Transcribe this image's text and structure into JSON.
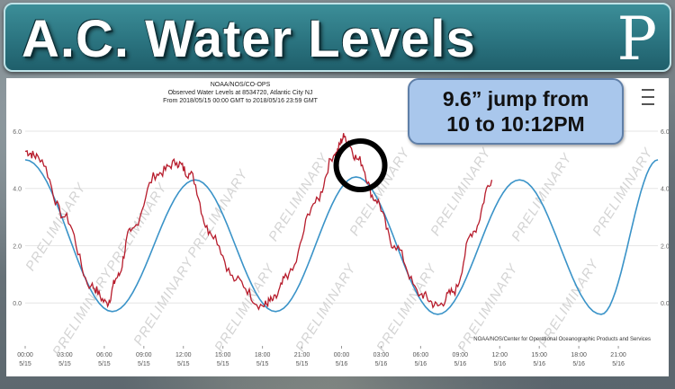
{
  "banner": {
    "title": "A.C. Water Levels",
    "logo_glyph": "P"
  },
  "callout": {
    "line1": "9.6” jump from",
    "line2": "10 to 10:12PM"
  },
  "footer_credit": "NOAA/NOS/Center for Operational Oceanographic Products and Services",
  "watermark_text": "PRELIMINARY",
  "chart_data": {
    "type": "line",
    "title": "NOAA/NOS/CO-OPS",
    "subtitle_lines": [
      "Observed Water Levels at 8534720, Atlantic City NJ",
      "From 2018/05/15 00:00 GMT to 2018/05/16 23:59 GMT"
    ],
    "x_unit": "hours since 2018/05/15 00:00 GMT",
    "xlim": [
      0,
      48
    ],
    "ylim": [
      -1.5,
      6.0
    ],
    "yticks": [
      0.0,
      2.0,
      4.0,
      6.0
    ],
    "ytick_labels": [
      "0.0",
      "2.0",
      "4.0",
      "6.0"
    ],
    "xtick_labels": [
      [
        "00:00",
        "5/15"
      ],
      [
        "03:00",
        "5/15"
      ],
      [
        "06:00",
        "5/15"
      ],
      [
        "09:00",
        "5/15"
      ],
      [
        "12:00",
        "5/15"
      ],
      [
        "15:00",
        "5/15"
      ],
      [
        "18:00",
        "5/15"
      ],
      [
        "21:00",
        "5/15"
      ],
      [
        "00:00",
        "5/16"
      ],
      [
        "03:00",
        "5/16"
      ],
      [
        "06:00",
        "5/16"
      ],
      [
        "09:00",
        "5/16"
      ],
      [
        "12:00",
        "5/16"
      ],
      [
        "15:00",
        "5/16"
      ],
      [
        "18:00",
        "5/16"
      ],
      [
        "21:00",
        "5/16"
      ]
    ],
    "grid": true,
    "series": [
      {
        "color": "#3a93c8",
        "style": "smooth",
        "x": [
          0,
          6.6,
          12.9,
          19.0,
          25.1,
          31.3,
          37.5,
          43.7,
          48
        ],
        "y": [
          5.0,
          -0.3,
          4.3,
          -0.3,
          4.4,
          -0.4,
          4.3,
          -0.4,
          5.0
        ]
      },
      {
        "color": "#b71c2c",
        "style": "noisy",
        "x": [
          0,
          1,
          3,
          5,
          6.2,
          7,
          8,
          10,
          11.5,
          12.5,
          14,
          16,
          18,
          18.8,
          20,
          22,
          23.5,
          24.2,
          25.3,
          26.6,
          28,
          30,
          31.3,
          32.5,
          34,
          35.4
        ],
        "y": [
          5.3,
          5.1,
          3.0,
          0.6,
          0.0,
          0.9,
          2.5,
          4.5,
          4.9,
          4.5,
          2.5,
          0.8,
          -0.1,
          0.1,
          1.0,
          3.5,
          5.2,
          5.8,
          5.0,
          3.6,
          2.0,
          0.3,
          -0.1,
          0.4,
          2.5,
          4.3
        ]
      }
    ],
    "annotation": {
      "type": "circle",
      "x": 25.3,
      "y": 4.9
    }
  }
}
